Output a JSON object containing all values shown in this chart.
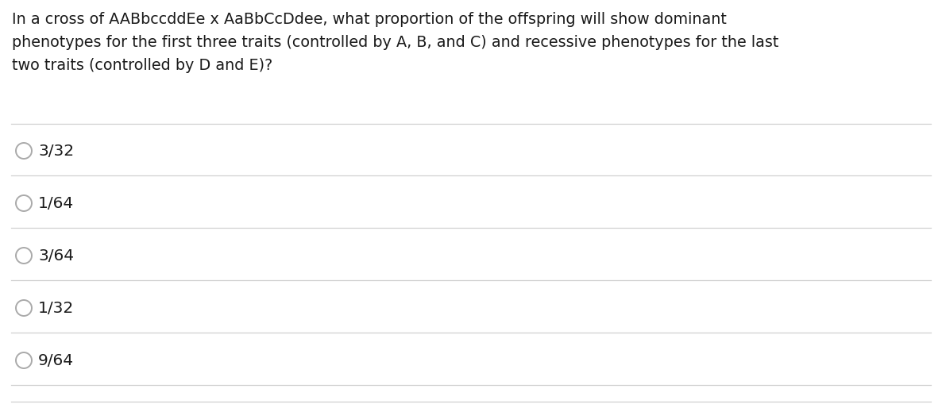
{
  "question_lines": [
    "In a cross of AABbccddEe x AaBbCcDdee, what proportion of the offspring will show dominant",
    "phenotypes for the first three traits (controlled by A, B, and C) and recessive phenotypes for the last",
    "two traits (controlled by D and E)?"
  ],
  "options": [
    "3/32",
    "1/64",
    "3/64",
    "1/32",
    "9/64"
  ],
  "background_color": "#ffffff",
  "text_color": "#1a1a1a",
  "line_color": "#d0d0d0",
  "font_size_question": 13.8,
  "font_size_options": 14.5,
  "circle_color": "#aaaaaa"
}
